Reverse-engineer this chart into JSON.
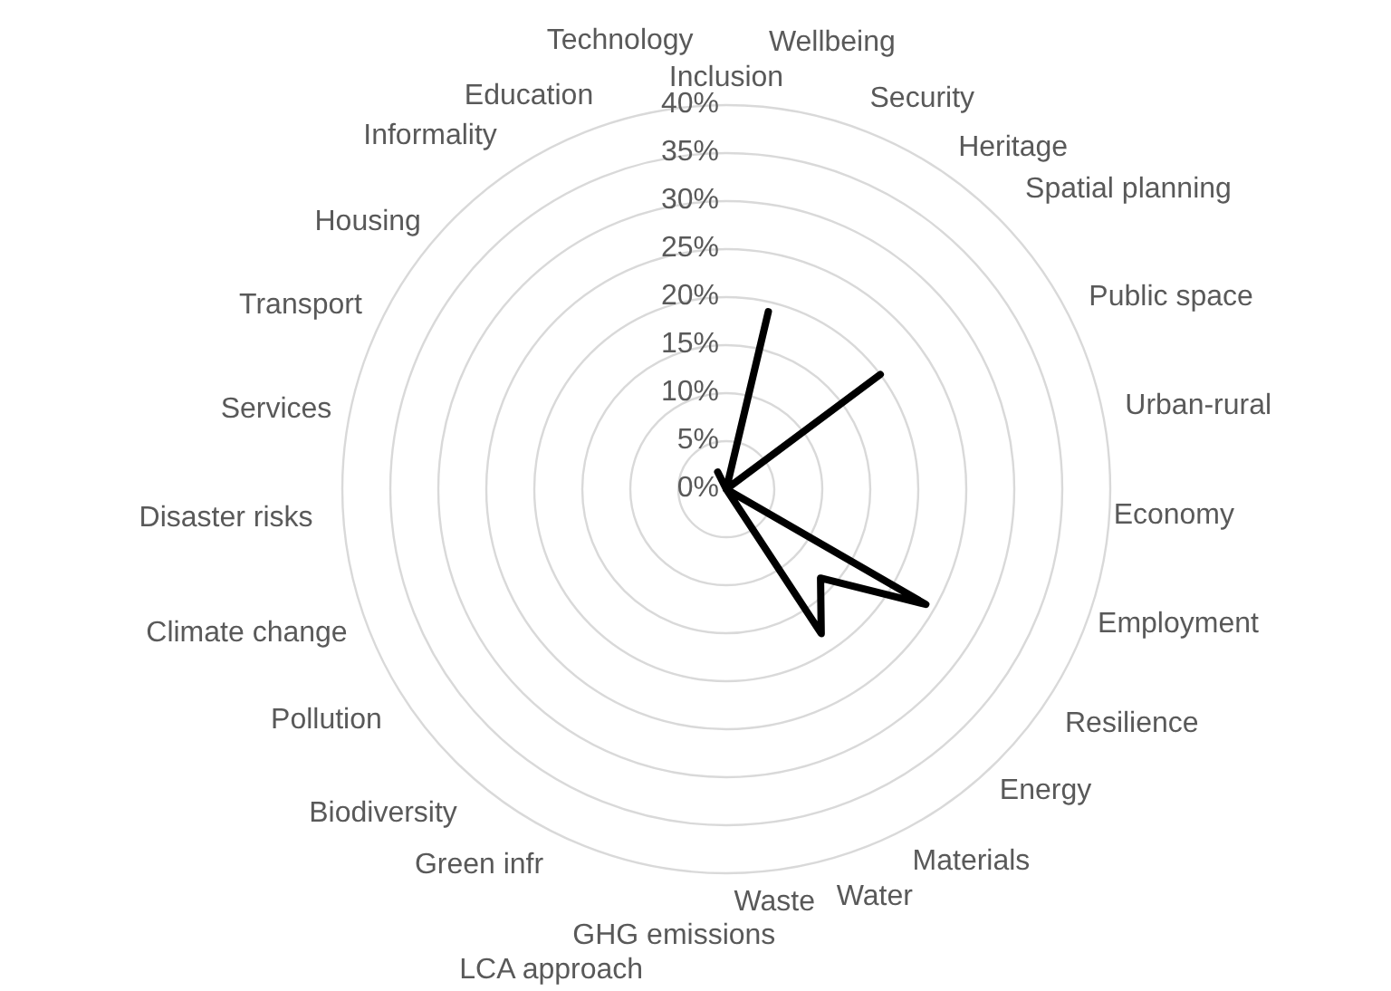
{
  "chart_data": {
    "type": "radar",
    "categories": [
      "Inclusion",
      "Wellbeing",
      "Security",
      "Heritage",
      "Spatial planning",
      "Public space",
      "Urban-rural",
      "Economy",
      "Employment",
      "Resilience",
      "Energy",
      "Materials",
      "Water",
      "Waste",
      "GHG emissions",
      "LCA approach",
      "Green infr",
      "Biodiversity",
      "Pollution",
      "Climate change",
      "Disaster risks",
      "Services",
      "Transport",
      "Housing",
      "Informality",
      "Education",
      "Technology"
    ],
    "series": [
      {
        "color": "#000000",
        "values": [
          0,
          19,
          0,
          0,
          20,
          0,
          0,
          0,
          0,
          24,
          13.5,
          18,
          0,
          0,
          0,
          0,
          0,
          0,
          0,
          0,
          0,
          0,
          0,
          0,
          0,
          2,
          0
        ]
      }
    ],
    "ylim": [
      0,
      40
    ],
    "yticks": [
      {
        "value": 0,
        "label": "0%"
      },
      {
        "value": 5,
        "label": "5%"
      },
      {
        "value": 10,
        "label": "10%"
      },
      {
        "value": 15,
        "label": "15%"
      },
      {
        "value": 20,
        "label": "20%"
      },
      {
        "value": 25,
        "label": "25%"
      },
      {
        "value": 30,
        "label": "30%"
      },
      {
        "value": 35,
        "label": "35%"
      },
      {
        "value": 40,
        "label": "40%"
      }
    ],
    "grid": true,
    "legend": false,
    "marker": "none",
    "line_style": "solid"
  }
}
